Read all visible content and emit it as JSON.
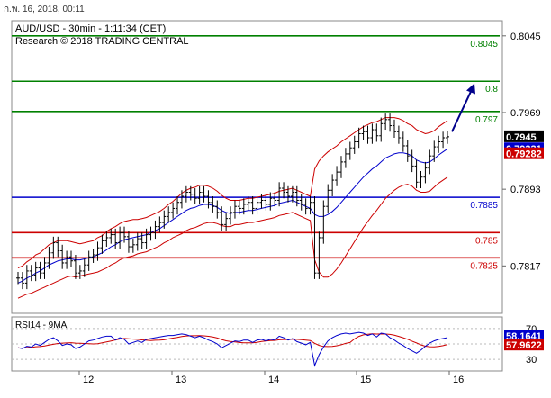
{
  "window": {
    "timestamp": "ก.พ. 16, 2018, 00:11"
  },
  "chart_data": {
    "type": "candlestick",
    "header": {
      "line1": "AUD/USD - 30min - 1:11:34 (CET)",
      "line2": "Research © 2018 TRADING CENTRAL"
    },
    "price_axis": {
      "ticks": [
        0.8045,
        0.7969,
        0.7893,
        0.7817
      ],
      "ylim": [
        0.777,
        0.806
      ]
    },
    "time_axis": {
      "labels": [
        "12",
        "13",
        "14",
        "15",
        "16"
      ]
    },
    "levels": [
      {
        "value": 0.8045,
        "label": "0.8045",
        "color": "#008000"
      },
      {
        "value": 0.8,
        "label": "0.8",
        "color": "#008000"
      },
      {
        "value": 0.797,
        "label": "0.797",
        "color": "#008000"
      },
      {
        "value": 0.7885,
        "label": "0.7885",
        "color": "#0000cc"
      },
      {
        "value": 0.785,
        "label": "0.785",
        "color": "#cc0000"
      },
      {
        "value": 0.7825,
        "label": "0.7825",
        "color": "#cc0000"
      }
    ],
    "price_badges": [
      {
        "value": 0.7945,
        "label": "0.7945",
        "bg": "#000000",
        "fg": "#ffffff"
      },
      {
        "value": 0.79331,
        "label": "0.79331",
        "bg": "#0000cc",
        "fg": "#ffffff"
      },
      {
        "value": 0.79282,
        "label": "0.79282",
        "bg": "#cc0000",
        "fg": "#ffffff"
      }
    ],
    "forecast_arrow": {
      "from": 0.795,
      "to": 0.7998,
      "color": "#00008b"
    },
    "close_series": [
      0.7805,
      0.78,
      0.7812,
      0.7808,
      0.7815,
      0.781,
      0.782,
      0.783,
      0.784,
      0.7832,
      0.782,
      0.7826,
      0.7822,
      0.781,
      0.7812,
      0.7818,
      0.7826,
      0.7828,
      0.7835,
      0.7842,
      0.7845,
      0.7848,
      0.784,
      0.785,
      0.7846,
      0.7836,
      0.7838,
      0.7844,
      0.784,
      0.7848,
      0.785,
      0.7856,
      0.786,
      0.7866,
      0.787,
      0.7874,
      0.788,
      0.7886,
      0.789,
      0.7888,
      0.7884,
      0.789,
      0.7886,
      0.788,
      0.7876,
      0.787,
      0.7858,
      0.7864,
      0.787,
      0.7876,
      0.7874,
      0.7878,
      0.788,
      0.7874,
      0.788,
      0.7882,
      0.7878,
      0.7884,
      0.7882,
      0.7894,
      0.789,
      0.7886,
      0.789,
      0.7882,
      0.7878,
      0.7874,
      0.788,
      0.781,
      0.7845,
      0.7876,
      0.7892,
      0.7902,
      0.791,
      0.792,
      0.7928,
      0.7934,
      0.794,
      0.7948,
      0.795,
      0.7944,
      0.7952,
      0.7946,
      0.7958,
      0.7962,
      0.7956,
      0.795,
      0.7944,
      0.7936,
      0.7926,
      0.7916,
      0.79,
      0.7905,
      0.7914,
      0.7926,
      0.7935,
      0.794,
      0.7944,
      0.7945
    ],
    "ma_series": [
      0.78,
      0.7802,
      0.7805,
      0.7807,
      0.781,
      0.7812,
      0.7815,
      0.7818,
      0.782,
      0.7822,
      0.7823,
      0.7824,
      0.7824,
      0.7823,
      0.7823,
      0.7824,
      0.7825,
      0.7826,
      0.7828,
      0.783,
      0.7833,
      0.7836,
      0.7838,
      0.7841,
      0.7843,
      0.7844,
      0.7845,
      0.7846,
      0.7847,
      0.7848,
      0.785,
      0.7852,
      0.7854,
      0.7857,
      0.786,
      0.7863,
      0.7866,
      0.7869,
      0.7872,
      0.7874,
      0.7875,
      0.7877,
      0.7878,
      0.7878,
      0.7877,
      0.7875,
      0.7872,
      0.787,
      0.7869,
      0.787,
      0.787,
      0.7871,
      0.7872,
      0.7872,
      0.7873,
      0.7874,
      0.7875,
      0.7876,
      0.7877,
      0.7879,
      0.788,
      0.7881,
      0.7882,
      0.788,
      0.7878,
      0.7876,
      0.7874,
      0.7868,
      0.7866,
      0.7866,
      0.7868,
      0.7871,
      0.7875,
      0.788,
      0.7885,
      0.789,
      0.7895,
      0.79,
      0.7905,
      0.7909,
      0.7913,
      0.7916,
      0.792,
      0.7924,
      0.7926,
      0.7928,
      0.7929,
      0.7929,
      0.7928,
      0.7926,
      0.7922,
      0.792,
      0.7919,
      0.792,
      0.7923,
      0.7927,
      0.793,
      0.7933
    ],
    "band_width": [
      0.0015,
      0.0015,
      0.0016,
      0.0017,
      0.0018,
      0.0018,
      0.0019,
      0.002,
      0.002,
      0.002,
      0.0019,
      0.0018,
      0.0017,
      0.0017,
      0.0016,
      0.0016,
      0.0016,
      0.0016,
      0.0017,
      0.0017,
      0.0018,
      0.0018,
      0.0018,
      0.0018,
      0.0018,
      0.0018,
      0.0018,
      0.0017,
      0.0017,
      0.0017,
      0.0017,
      0.0017,
      0.0017,
      0.0017,
      0.0018,
      0.0018,
      0.0019,
      0.002,
      0.002,
      0.002,
      0.002,
      0.002,
      0.0019,
      0.0018,
      0.0017,
      0.0016,
      0.0015,
      0.0014,
      0.0013,
      0.0012,
      0.0012,
      0.0012,
      0.0012,
      0.0012,
      0.0012,
      0.0012,
      0.0012,
      0.0012,
      0.0012,
      0.0012,
      0.0012,
      0.0012,
      0.0012,
      0.0012,
      0.0012,
      0.0012,
      0.0012,
      0.0045,
      0.0055,
      0.006,
      0.0062,
      0.0062,
      0.0061,
      0.006,
      0.0058,
      0.0056,
      0.0054,
      0.0052,
      0.005,
      0.0048,
      0.0046,
      0.0044,
      0.0042,
      0.004,
      0.0038,
      0.0036,
      0.0034,
      0.0032,
      0.003,
      0.003,
      0.003,
      0.003,
      0.0029,
      0.0029,
      0.0028,
      0.0028,
      0.0028,
      0.0028
    ],
    "rsi": {
      "label": "RSI14 - 9MA",
      "ticks": [
        70,
        50,
        30
      ],
      "ylim": [
        15,
        85
      ],
      "values": [
        45,
        44,
        47,
        46,
        50,
        48,
        52,
        56,
        58,
        54,
        48,
        50,
        49,
        44,
        46,
        50,
        54,
        55,
        57,
        59,
        60,
        60,
        55,
        58,
        56,
        50,
        52,
        54,
        52,
        56,
        57,
        58,
        59,
        60,
        61,
        61,
        62,
        63,
        62,
        60,
        58,
        60,
        58,
        55,
        53,
        50,
        45,
        48,
        51,
        54,
        53,
        55,
        55,
        52,
        55,
        56,
        54,
        56,
        55,
        60,
        58,
        55,
        57,
        53,
        51,
        49,
        52,
        22,
        36,
        46,
        54,
        58,
        61,
        63,
        64,
        63,
        64,
        65,
        64,
        61,
        63,
        59,
        64,
        63,
        58,
        55,
        51,
        48,
        44,
        41,
        38,
        42,
        47,
        51,
        54,
        56,
        57,
        58.16
      ],
      "badges": [
        {
          "value": 58.1641,
          "label": "58.1641",
          "bg": "#0000cc",
          "fg": "#ffffff"
        },
        {
          "value": 57.9622,
          "label": "57.9622",
          "bg": "#cc0000",
          "fg": "#ffffff"
        }
      ]
    }
  }
}
